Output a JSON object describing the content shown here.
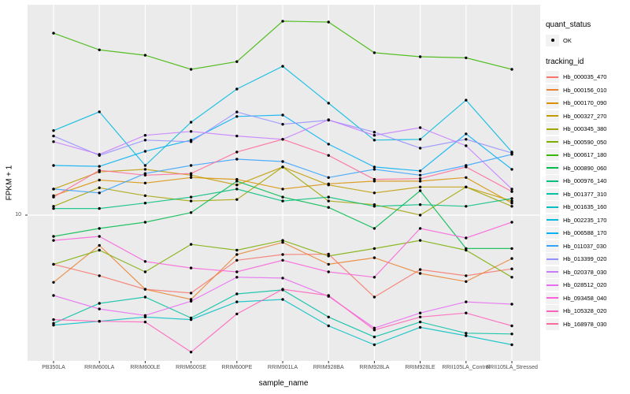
{
  "figure": {
    "panel_bg": "#EBEBEB",
    "grid_color": "#FFFFFF",
    "tick_color": "#333333",
    "axis_text_color": "#4D4D4D",
    "point_color": "#000000"
  },
  "axes": {
    "x_title": "sample_name",
    "y_title": "FPKM + 1",
    "y_tick_label": "10"
  },
  "legend": {
    "quant_title": "quant_status",
    "quant_item_label": "OK",
    "tracking_title": "tracking_id"
  },
  "chart_data": {
    "type": "line",
    "y_scale": "log10",
    "grid": "vertical-major",
    "legend_position": "right",
    "y_tick_values": [
      10
    ],
    "x_categories": [
      "PB350LA",
      "RRIM600LA",
      "RRIM600LE",
      "RRIM600SE",
      "RRIM600PE",
      "RRIM901LA",
      "RRIM928BA",
      "RRIM928LA",
      "RRIM928LE",
      "RRII105LA_Control",
      "RRII105LA_Stressed"
    ],
    "series": [
      {
        "name": "Hb_000035_470",
        "color": "#F8766D",
        "values": [
          4.6,
          3.84,
          3.1,
          2.92,
          4.9,
          5.37,
          5.4,
          2.74,
          4.23,
          3.84,
          4.28
        ]
      },
      {
        "name": "Hb_000156_010",
        "color": "#EA8331",
        "values": [
          3.46,
          6.2,
          3.1,
          2.64,
          5.37,
          6.5,
          4.6,
          5.1,
          3.98,
          3.5,
          5.04
        ]
      },
      {
        "name": "Hb_000170_090",
        "color": "#D89000",
        "values": [
          13.6,
          17.4,
          16.6,
          18.1,
          17.6,
          15.1,
          16.4,
          17.1,
          17.1,
          18.1,
          12.1
        ]
      },
      {
        "name": "Hb_000327_270",
        "color": "#C09B00",
        "values": [
          15.1,
          19.8,
          20.6,
          18.8,
          16.1,
          21.4,
          16.1,
          14.2,
          15.6,
          15.6,
          12.5
        ]
      },
      {
        "name": "Hb_000345_380",
        "color": "#A3A500",
        "values": [
          11.5,
          15.4,
          13.6,
          12.5,
          12.8,
          21.4,
          12.5,
          11.8,
          10.0,
          15.6,
          11.5
        ]
      },
      {
        "name": "Hb_000590_050",
        "color": "#7CAE00",
        "values": [
          4.6,
          5.75,
          4.08,
          6.3,
          5.75,
          6.71,
          5.24,
          5.9,
          6.71,
          5.75,
          3.75
        ]
      },
      {
        "name": "Hb_000617_180",
        "color": "#39B600",
        "values": [
          177,
          136,
          125,
          100,
          113,
          214,
          211,
          130,
          122,
          120,
          100
        ]
      },
      {
        "name": "Hb_000890_060",
        "color": "#00BB4E",
        "values": [
          7.15,
          8.1,
          8.94,
          10.4,
          17.1,
          13.3,
          11.3,
          8.1,
          14.7,
          5.9,
          5.9
        ]
      },
      {
        "name": "Hb_000976_140",
        "color": "#00BF7D",
        "values": [
          11.1,
          11.1,
          12.1,
          13.3,
          15.1,
          12.5,
          13.3,
          11.5,
          11.8,
          11.5,
          13.0
        ]
      },
      {
        "name": "Hb_001377_310",
        "color": "#00C1A3",
        "values": [
          1.81,
          2.48,
          2.74,
          1.97,
          2.88,
          3.07,
          2.0,
          1.46,
          1.85,
          1.55,
          1.53
        ]
      },
      {
        "name": "Hb_001635_160",
        "color": "#00BFC4",
        "values": [
          1.76,
          1.87,
          2.0,
          1.92,
          2.54,
          2.64,
          1.74,
          1.29,
          1.7,
          1.49,
          1.29
        ]
      },
      {
        "name": "Hb_002235_170",
        "color": "#00BAE0",
        "values": [
          38,
          51.1,
          21.9,
          43.4,
          73.3,
          105,
          58.6,
          32.7,
          33.1,
          61.5,
          27.1
        ]
      },
      {
        "name": "Hb_006588_170",
        "color": "#00B0F6",
        "values": [
          21.9,
          21.6,
          27.4,
          32.7,
          47.5,
          48.6,
          30.7,
          21.4,
          20.1,
          36.1,
          20.6
        ]
      },
      {
        "name": "Hb_011037_030",
        "color": "#35A2FF",
        "values": [
          15.1,
          14.2,
          19.3,
          21.9,
          24.2,
          23.3,
          18.1,
          20.6,
          18.8,
          21.9,
          26.1
        ]
      },
      {
        "name": "Hb_013399_020",
        "color": "#9590FF",
        "values": [
          34.9,
          25.7,
          32.7,
          31.9,
          51,
          42,
          44.8,
          37.1,
          28.8,
          33.1,
          26.7
        ]
      },
      {
        "name": "Hb_020378_030",
        "color": "#C77CFF",
        "values": [
          31.9,
          26.1,
          35.3,
          37.5,
          34.9,
          33.1,
          45.1,
          35.3,
          39.8,
          29.9,
          15.1
        ]
      },
      {
        "name": "Hb_028512_020",
        "color": "#E76BF3",
        "values": [
          2.81,
          2.27,
          2.05,
          2.57,
          3.75,
          3.7,
          2.77,
          1.68,
          2.13,
          2.54,
          2.45
        ]
      },
      {
        "name": "Hb_093458_040",
        "color": "#FA62DB",
        "values": [
          6.71,
          7.15,
          4.81,
          4.34,
          4.08,
          4.9,
          4.08,
          3.75,
          8.1,
          6.97,
          8.94
        ]
      },
      {
        "name": "Hb_105328_020",
        "color": "#FF62BC",
        "values": [
          1.92,
          1.87,
          1.85,
          1.15,
          2.1,
          3.1,
          2.81,
          1.63,
          2.0,
          2.13,
          1.74
        ]
      },
      {
        "name": "Hb_168978_030",
        "color": "#FF6A98",
        "values": [
          13.3,
          20.3,
          18.8,
          19.3,
          27.1,
          33.1,
          25.7,
          17.6,
          17.8,
          21.4,
          14.5
        ]
      }
    ]
  }
}
